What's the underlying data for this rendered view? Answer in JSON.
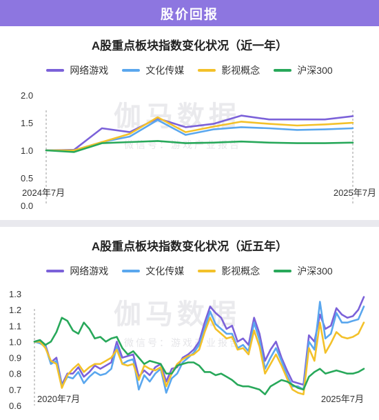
{
  "header": {
    "title": "股价回报"
  },
  "watermark": {
    "title": "伽马数据",
    "subtitle": "微信号：游戏产业报告"
  },
  "colors": {
    "网络游戏": "#7b61d9",
    "文化传媒": "#5aa7ee",
    "影视概念": "#f3c12a",
    "沪深300": "#28a85a"
  },
  "chart_data": [
    {
      "type": "line",
      "title": "A股重点板块指数变化状况（近一年）",
      "x_start_label": "2024年7月",
      "x_end_label": "2025年7月",
      "ylim": [
        0.0,
        2.0
      ],
      "yticks": [
        "2.0",
        "1.5",
        "1.0",
        "0.5",
        "0.0"
      ],
      "ytick_values": [
        2.0,
        1.5,
        1.0,
        0.5,
        0.0
      ],
      "grid": false,
      "legend": "top",
      "series": [
        {
          "name": "网络游戏",
          "values": [
            1.0,
            1.01,
            1.4,
            1.33,
            1.58,
            1.42,
            1.48,
            1.63,
            1.56,
            1.56,
            1.56,
            1.62
          ]
        },
        {
          "name": "文化传媒",
          "values": [
            1.0,
            1.0,
            1.15,
            1.25,
            1.55,
            1.28,
            1.38,
            1.42,
            1.4,
            1.37,
            1.38,
            1.4
          ]
        },
        {
          "name": "影视概念",
          "values": [
            1.0,
            1.0,
            1.15,
            1.3,
            1.6,
            1.33,
            1.43,
            1.52,
            1.48,
            1.45,
            1.47,
            1.5
          ]
        },
        {
          "name": "沪深300",
          "values": [
            1.0,
            0.97,
            1.13,
            1.15,
            1.17,
            1.13,
            1.14,
            1.16,
            1.14,
            1.13,
            1.13,
            1.14
          ]
        }
      ]
    },
    {
      "type": "line",
      "title": "A股重点板块指数变化状况（近五年）",
      "x_start_label": "2020年7月",
      "x_end_label": "2025年7月",
      "ylim": [
        0.6,
        1.3
      ],
      "yticks": [
        "1.3",
        "1.2",
        "1.1",
        "1.0",
        "0.9",
        "0.8",
        "0.7",
        "0.6"
      ],
      "ytick_values": [
        1.3,
        1.2,
        1.1,
        1.0,
        0.9,
        0.8,
        0.7,
        0.6
      ],
      "grid": false,
      "legend": "top",
      "series": [
        {
          "name": "网络游戏",
          "values": [
            1.0,
            1.01,
            0.98,
            0.87,
            0.9,
            0.73,
            0.8,
            0.8,
            0.84,
            0.78,
            0.81,
            0.85,
            0.83,
            0.85,
            0.87,
            1.0,
            0.9,
            0.91,
            0.92,
            0.78,
            0.82,
            0.79,
            0.84,
            0.86,
            0.75,
            0.83,
            0.84,
            0.9,
            0.92,
            0.95,
            1.0,
            1.12,
            1.22,
            1.18,
            1.15,
            1.08,
            1.1,
            1.0,
            1.02,
            0.98,
            1.15,
            1.05,
            0.88,
            0.95,
            1.0,
            0.9,
            0.82,
            0.75,
            0.74,
            0.73,
            1.04,
            1.0,
            1.17,
            1.08,
            1.1,
            1.21,
            1.17,
            1.15,
            1.16,
            1.2,
            1.28
          ]
        },
        {
          "name": "文化传媒",
          "values": [
            1.0,
            0.99,
            0.97,
            0.86,
            0.88,
            0.72,
            0.78,
            0.77,
            0.81,
            0.74,
            0.78,
            0.81,
            0.79,
            0.8,
            0.83,
            0.97,
            0.86,
            0.88,
            0.89,
            0.7,
            0.79,
            0.75,
            0.8,
            0.83,
            0.68,
            0.77,
            0.8,
            0.87,
            0.9,
            0.93,
            0.98,
            1.08,
            1.19,
            1.11,
            1.08,
            1.05,
            1.05,
            0.96,
            0.98,
            0.94,
            1.12,
            1.01,
            0.83,
            0.9,
            0.96,
            0.88,
            0.79,
            0.72,
            0.72,
            0.7,
            1.0,
            0.95,
            1.25,
            1.02,
            1.05,
            1.18,
            1.12,
            1.12,
            1.13,
            1.14,
            1.22
          ]
        },
        {
          "name": "影视概念",
          "values": [
            1.0,
            1.0,
            0.96,
            0.88,
            0.86,
            0.71,
            0.79,
            0.83,
            0.86,
            0.81,
            0.84,
            0.86,
            0.86,
            0.88,
            0.9,
            0.95,
            0.86,
            0.85,
            0.86,
            0.76,
            0.85,
            0.83,
            0.82,
            0.84,
            0.72,
            0.8,
            0.86,
            0.89,
            0.91,
            0.92,
            0.95,
            1.06,
            1.15,
            1.08,
            1.05,
            1.02,
            1.03,
            0.95,
            0.96,
            0.92,
            1.07,
            0.97,
            0.8,
            0.86,
            0.92,
            0.85,
            0.77,
            0.7,
            0.68,
            0.67,
            0.96,
            0.88,
            1.12,
            0.93,
            0.99,
            1.06,
            1.03,
            1.02,
            1.03,
            1.05,
            1.12
          ]
        },
        {
          "name": "沪深300",
          "values": [
            1.0,
            1.01,
            0.98,
            1.0,
            1.06,
            1.15,
            1.13,
            1.07,
            1.05,
            1.12,
            1.08,
            1.02,
            1.03,
            1.0,
            1.02,
            1.03,
            0.96,
            0.92,
            0.94,
            0.9,
            0.86,
            0.88,
            0.87,
            0.86,
            0.8,
            0.8,
            0.85,
            0.86,
            0.87,
            0.87,
            0.85,
            0.81,
            0.81,
            0.79,
            0.8,
            0.78,
            0.76,
            0.73,
            0.72,
            0.72,
            0.71,
            0.7,
            0.67,
            0.72,
            0.74,
            0.76,
            0.75,
            0.73,
            0.71,
            0.7,
            0.78,
            0.81,
            0.83,
            0.8,
            0.81,
            0.82,
            0.81,
            0.8,
            0.8,
            0.81,
            0.83
          ]
        }
      ]
    }
  ]
}
